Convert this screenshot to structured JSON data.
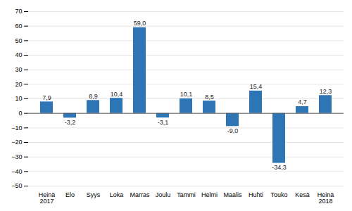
{
  "chart_data": {
    "type": "bar",
    "categories": [
      "Heinä\n2017",
      "Elo",
      "Syys",
      "Loka",
      "Marras",
      "Joulu",
      "Tammi",
      "Helmi",
      "Maalis",
      "Huhti",
      "Touko",
      "Kesä",
      "Heinä\n2018"
    ],
    "values": [
      7.9,
      -3.2,
      8.9,
      10.4,
      59.0,
      -3.1,
      10.1,
      8.5,
      -9.0,
      15.4,
      -34.3,
      4.7,
      12.3
    ],
    "value_labels": [
      "7,9",
      "-3,2",
      "8,9",
      "10,4",
      "59,0",
      "-3,1",
      "10,1",
      "8,5",
      "-9,0",
      "15,4",
      "-34,3",
      "4,7",
      "12,3"
    ],
    "color": "#2E75B6",
    "ylim": [
      -50,
      70
    ],
    "yticks": [
      -50,
      -40,
      -30,
      -20,
      -10,
      0,
      10,
      20,
      30,
      40,
      50,
      60,
      70
    ],
    "grid": true,
    "data_labels": true
  }
}
